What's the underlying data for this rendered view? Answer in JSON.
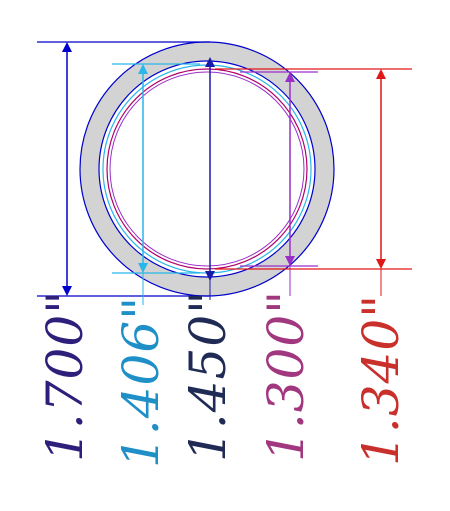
{
  "diagram": {
    "colors": {
      "outer_ring": "#0000cc",
      "ring_fill": "#d3d3d3",
      "cyan_line": "#29b6e8",
      "magenta_circle": "#b0006a",
      "purple_line": "#9a2ec9",
      "red_line": "#e01717",
      "blue_line": "#1a1aa8",
      "label_1700": "#2e1f7a",
      "label_1406": "#1e8fc7",
      "label_1450": "#1f2a55",
      "label_1300": "#a0377f",
      "label_1340": "#c9302c"
    },
    "labels": {
      "d1700": "1.700\"",
      "d1406": "1.406\"",
      "d1450": "1.450\"",
      "d1300": "1.300\"",
      "d1340": "1.340\""
    }
  }
}
